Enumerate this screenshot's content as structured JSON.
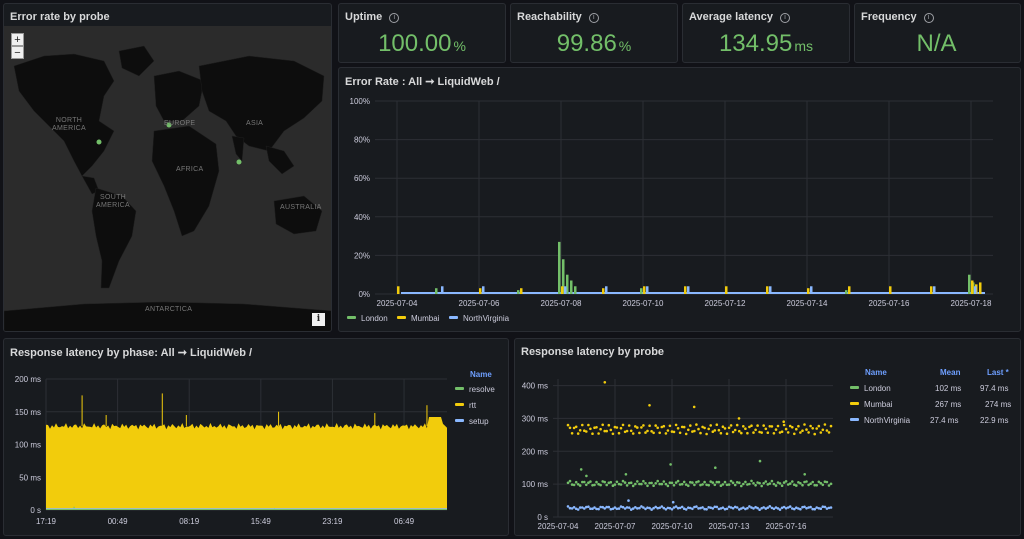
{
  "colors": {
    "london": "#73bf69",
    "mumbai": "#f2cc0c",
    "northvirginia": "#8ab8ff",
    "stat": "#73bf69",
    "accent": "#6e9fff"
  },
  "map_panel": {
    "title": "Error rate by probe",
    "zoom_in": "+",
    "zoom_out": "−",
    "info": "i",
    "labels": {
      "north_america": "NORTH\nAMERICA",
      "europe": "EUROPE",
      "asia": "ASIA",
      "africa": "AFRICA",
      "south_america": "SOUTH\nAMERICA",
      "australia": "AUSTRALIA",
      "antarctica": "ANTARCTICA"
    }
  },
  "stats": [
    {
      "title": "Uptime",
      "value": "100.00",
      "unit": "%"
    },
    {
      "title": "Reachability",
      "value": "99.86",
      "unit": "%"
    },
    {
      "title": "Average latency",
      "value": "134.95",
      "unit": "ms"
    },
    {
      "title": "Frequency",
      "value": "N/A",
      "unit": ""
    }
  ],
  "error_rate": {
    "title": "Error Rate : All ➞ LiquidWeb /",
    "legend": [
      "London",
      "Mumbai",
      "NorthVirginia"
    ]
  },
  "latency_phase": {
    "title": "Response latency by phase: All ➞ LiquidWeb /",
    "legend_header": "Name",
    "legend": [
      "resolve",
      "rtt",
      "setup"
    ]
  },
  "latency_probe": {
    "title": "Response latency by probe",
    "headers": {
      "name": "Name",
      "mean": "Mean",
      "last": "Last *"
    },
    "rows": [
      {
        "name": "London",
        "mean": "102 ms",
        "last": "97.4 ms"
      },
      {
        "name": "Mumbai",
        "mean": "267 ms",
        "last": "274 ms"
      },
      {
        "name": "NorthVirginia",
        "mean": "27.4 ms",
        "last": "22.9 ms"
      }
    ]
  },
  "chart_data": [
    {
      "type": "bar",
      "title": "Error Rate : All ➞ LiquidWeb /",
      "x_ticks": [
        "2025-07-04",
        "2025-07-06",
        "2025-07-08",
        "2025-07-10",
        "2025-07-12",
        "2025-07-14",
        "2025-07-16",
        "2025-07-18"
      ],
      "y_ticks": [
        "0%",
        "20%",
        "40%",
        "60%",
        "80%",
        "100%"
      ],
      "ylim": [
        0,
        100
      ],
      "xlim": [
        "2025-07-04",
        "2025-07-18"
      ],
      "legend_placement": "bottom-left",
      "series": [
        {
          "name": "London",
          "points": [
            [
              "2025-07-05",
              3
            ],
            [
              "2025-07-07",
              2
            ],
            [
              "2025-07-08",
              27
            ],
            [
              "2025-07-08",
              18
            ],
            [
              "2025-07-08",
              10
            ],
            [
              "2025-07-08",
              7
            ],
            [
              "2025-07-08",
              4
            ],
            [
              "2025-07-10",
              3
            ],
            [
              "2025-07-15",
              2
            ],
            [
              "2025-07-18",
              10
            ],
            [
              "2025-07-18",
              6
            ]
          ]
        },
        {
          "name": "Mumbai",
          "points": [
            [
              "2025-07-04",
              4
            ],
            [
              "2025-07-06",
              3
            ],
            [
              "2025-07-07",
              3
            ],
            [
              "2025-07-08",
              4
            ],
            [
              "2025-07-09",
              3
            ],
            [
              "2025-07-10",
              4
            ],
            [
              "2025-07-11",
              4
            ],
            [
              "2025-07-12",
              4
            ],
            [
              "2025-07-13",
              4
            ],
            [
              "2025-07-14",
              3
            ],
            [
              "2025-07-15",
              4
            ],
            [
              "2025-07-16",
              4
            ],
            [
              "2025-07-17",
              4
            ],
            [
              "2025-07-18",
              7
            ],
            [
              "2025-07-18",
              5
            ],
            [
              "2025-07-18",
              6
            ]
          ]
        },
        {
          "name": "NorthVirginia",
          "points": [
            [
              "2025-07-05",
              4
            ],
            [
              "2025-07-06",
              4
            ],
            [
              "2025-07-08",
              4
            ],
            [
              "2025-07-09",
              4
            ],
            [
              "2025-07-10",
              4
            ],
            [
              "2025-07-11",
              4
            ],
            [
              "2025-07-13",
              4
            ],
            [
              "2025-07-14",
              4
            ],
            [
              "2025-07-17",
              4
            ],
            [
              "2025-07-18",
              4
            ]
          ]
        }
      ]
    },
    {
      "type": "area",
      "title": "Response latency by phase: All ➞ LiquidWeb /",
      "x_ticks": [
        "17:19",
        "00:49",
        "08:19",
        "15:49",
        "23:19",
        "06:49"
      ],
      "y_ticks": [
        "0 s",
        "50 ms",
        "100 ms",
        "150 ms",
        "200 ms"
      ],
      "ylim": [
        0,
        200
      ],
      "legend_placement": "right",
      "series": [
        {
          "name": "resolve",
          "baseline": 1,
          "spikes": [
            5,
            3
          ]
        },
        {
          "name": "rtt",
          "baseline": 128,
          "spikes": [
            175,
            178,
            145,
            150,
            148,
            145,
            160
          ]
        },
        {
          "name": "setup",
          "baseline": 2
        }
      ]
    },
    {
      "type": "scatter",
      "title": "Response latency by probe",
      "x_ticks": [
        "2025-07-04",
        "2025-07-07",
        "2025-07-10",
        "2025-07-13",
        "2025-07-16"
      ],
      "y_ticks": [
        "0 s",
        "100 ms",
        "200 ms",
        "300 ms",
        "400 ms"
      ],
      "ylim": [
        0,
        420
      ],
      "legend_placement": "right",
      "series": [
        {
          "name": "London",
          "mean": 102,
          "last": 97.4,
          "outliers": [
            145,
            130,
            160,
            150,
            170,
            130,
            125
          ]
        },
        {
          "name": "Mumbai",
          "mean": 267,
          "last": 274,
          "outliers": [
            410,
            340,
            335,
            300,
            290
          ]
        },
        {
          "name": "NorthVirginia",
          "mean": 27.4,
          "last": 22.9,
          "outliers": [
            50,
            45
          ]
        }
      ]
    }
  ]
}
